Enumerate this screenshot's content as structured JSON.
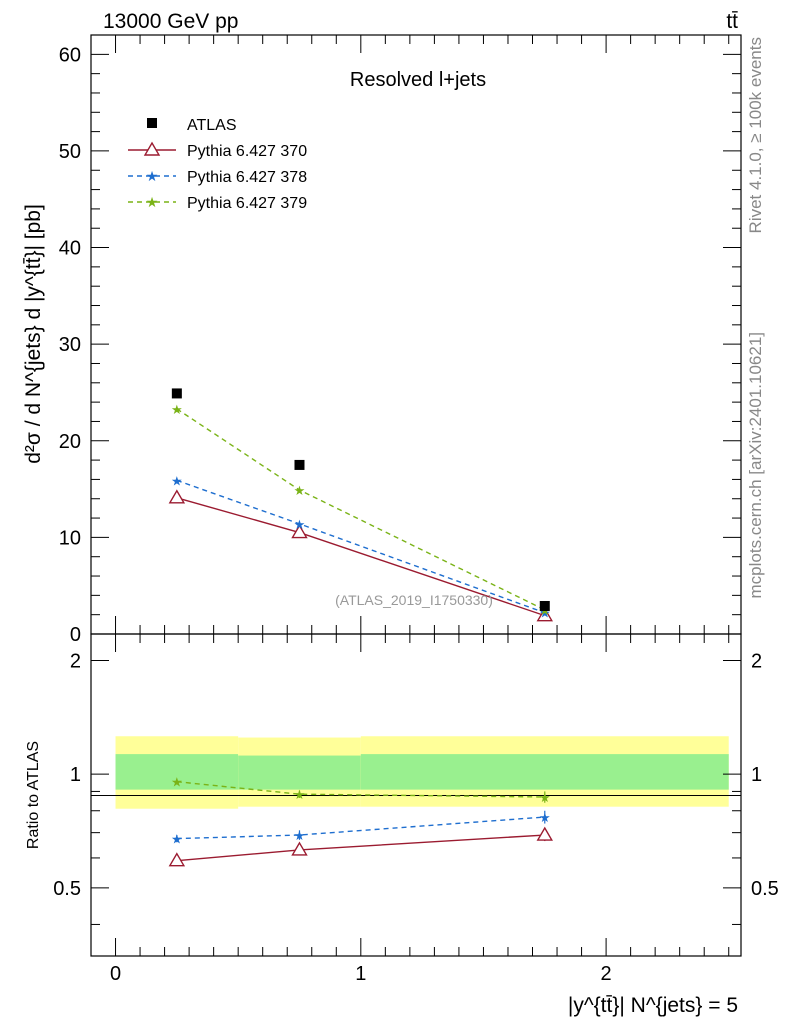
{
  "chart_data": {
    "type": "line",
    "header_left": "13000 GeV pp",
    "header_right": "tt̄",
    "title": "Resolved l+jets",
    "watermark": "(ATLAS_2019_I1750330)",
    "side_text_top": "Rivet 4.1.0, ≥ 100k events",
    "side_text_bottom": "mcplots.cern.ch [arXiv:2401.10621]",
    "ylabel_main": "d²σ / d N^{jets} d |y^{tt̄}| [pb]",
    "ylabel_ratio": "Ratio to ATLAS",
    "xlabel": "|y^{tt̄}| N^{jets} = 5",
    "xlim": [
      -0.1,
      2.55
    ],
    "ylim_main": [
      0,
      62
    ],
    "ylim_ratio": [
      0.33,
      2.35
    ],
    "x_ticks": [
      "0",
      "1",
      "2"
    ],
    "y_ticks_main": [
      "0",
      "10",
      "20",
      "30",
      "40",
      "50",
      "60"
    ],
    "y_ticks_ratio": [
      "0.5",
      "1",
      "2"
    ],
    "x": [
      0.25,
      0.75,
      1.75
    ],
    "bin_edges": [
      0,
      0.5,
      1.0,
      2.5
    ],
    "data": {
      "name": "ATLAS",
      "values": [
        24.9,
        17.5,
        2.9
      ]
    },
    "band_yellow": [
      [
        0.81,
        1.26
      ],
      [
        0.82,
        1.25
      ],
      [
        0.82,
        1.26
      ]
    ],
    "band_green": [
      [
        0.91,
        1.13
      ],
      [
        0.91,
        1.12
      ],
      [
        0.91,
        1.13
      ]
    ],
    "series": [
      {
        "name": "Pythia 6.427 370",
        "color": "#9b1b30",
        "dash": "",
        "marker": "triangle",
        "values": [
          14.1,
          10.5,
          1.9
        ],
        "ratio": [
          0.59,
          0.63,
          0.69
        ],
        "ratio_err": [
          0.01,
          0.012,
          0.025
        ]
      },
      {
        "name": "Pythia 6.427 378",
        "color": "#1e6ecf",
        "dash": "5,4",
        "marker": "star",
        "values": [
          15.9,
          11.4,
          2.2
        ],
        "ratio": [
          0.675,
          0.69,
          0.77
        ],
        "ratio_err": [
          0.015,
          0.02,
          0.03
        ]
      },
      {
        "name": "Pythia 6.427 379",
        "color": "#7ab317",
        "dash": "5,4",
        "marker": "star",
        "values": [
          23.3,
          14.9,
          2.5
        ],
        "ratio": [
          0.955,
          0.885,
          0.87
        ],
        "ratio_err": [
          0.015,
          0.02,
          0.03
        ]
      }
    ]
  }
}
